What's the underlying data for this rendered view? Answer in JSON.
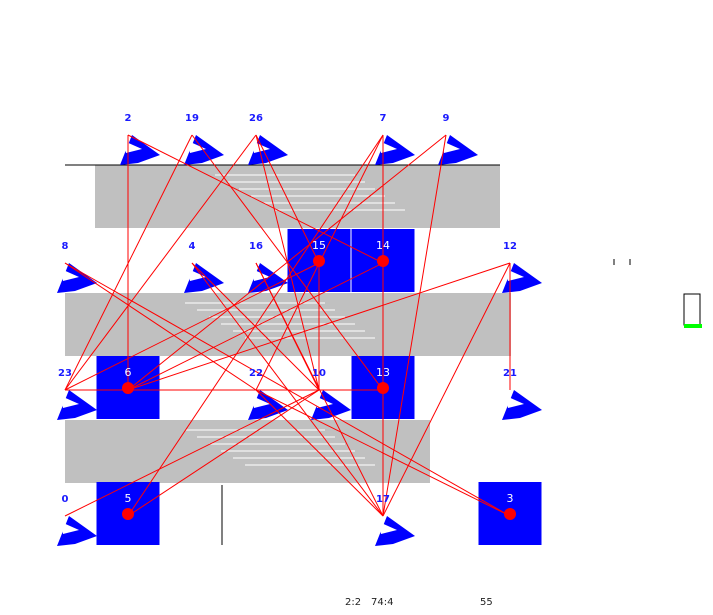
{
  "colors": {
    "band": "#c0c0c0",
    "node_fill": "#0000ff",
    "edge": "#ff0000",
    "dot": "#ff0000",
    "accent": "#00ff00"
  },
  "nodes": [
    {
      "id": "n2",
      "label": "2",
      "col": 1,
      "row": 0,
      "style": "glyph"
    },
    {
      "id": "n19",
      "label": "19",
      "col": 2,
      "row": 0,
      "style": "glyph"
    },
    {
      "id": "n26",
      "label": "26",
      "col": 3,
      "row": 0,
      "style": "glyph"
    },
    {
      "id": "n7",
      "label": "7",
      "col": 5,
      "row": 0,
      "style": "glyph"
    },
    {
      "id": "n9",
      "label": "9",
      "col": 6,
      "row": 0,
      "style": "glyph"
    },
    {
      "id": "n8",
      "label": "8",
      "col": 0,
      "row": 1,
      "style": "glyph"
    },
    {
      "id": "n4",
      "label": "4",
      "col": 2,
      "row": 1,
      "style": "glyph"
    },
    {
      "id": "n16",
      "label": "16",
      "col": 3,
      "row": 1,
      "style": "glyph"
    },
    {
      "id": "n15",
      "label": "15",
      "col": 4,
      "row": 1,
      "style": "box"
    },
    {
      "id": "n14",
      "label": "14",
      "col": 5,
      "row": 1,
      "style": "box"
    },
    {
      "id": "n12",
      "label": "12",
      "col": 7,
      "row": 1,
      "style": "glyph"
    },
    {
      "id": "n23",
      "label": "23",
      "col": 0,
      "row": 2,
      "style": "glyph"
    },
    {
      "id": "n6",
      "label": "6",
      "col": 1,
      "row": 2,
      "style": "box"
    },
    {
      "id": "n22",
      "label": "22",
      "col": 3,
      "row": 2,
      "style": "glyph"
    },
    {
      "id": "n10",
      "label": "10",
      "col": 4,
      "row": 2,
      "style": "glyph"
    },
    {
      "id": "n13",
      "label": "13",
      "col": 5,
      "row": 2,
      "style": "box"
    },
    {
      "id": "n21",
      "label": "21",
      "col": 7,
      "row": 2,
      "style": "glyph"
    },
    {
      "id": "n0",
      "label": "0",
      "col": 0,
      "row": 3,
      "style": "glyph"
    },
    {
      "id": "n5",
      "label": "5",
      "col": 1,
      "row": 3,
      "style": "box"
    },
    {
      "id": "n17",
      "label": "17",
      "col": 5,
      "row": 3,
      "style": "glyph"
    },
    {
      "id": "n3",
      "label": "3",
      "col": 7,
      "row": 3,
      "style": "box"
    }
  ],
  "edges": [
    [
      "n2",
      "n14"
    ],
    [
      "n2",
      "n6"
    ],
    [
      "n19",
      "n23"
    ],
    [
      "n19",
      "n13"
    ],
    [
      "n26",
      "n23"
    ],
    [
      "n26",
      "n10"
    ],
    [
      "n26",
      "n15"
    ],
    [
      "n7",
      "n17"
    ],
    [
      "n7",
      "n5"
    ],
    [
      "n7",
      "n22"
    ],
    [
      "n9",
      "n17"
    ],
    [
      "n9",
      "n6"
    ],
    [
      "n8",
      "n22"
    ],
    [
      "n8",
      "n3"
    ],
    [
      "n4",
      "n17"
    ],
    [
      "n16",
      "n10"
    ],
    [
      "n15",
      "n23"
    ],
    [
      "n15",
      "n10"
    ],
    [
      "n14",
      "n6"
    ],
    [
      "n14",
      "n17"
    ],
    [
      "n12",
      "n6"
    ],
    [
      "n12",
      "n17"
    ],
    [
      "n12",
      "n21"
    ],
    [
      "n23",
      "n13"
    ],
    [
      "n6",
      "n10"
    ],
    [
      "n22",
      "n17"
    ],
    [
      "n10",
      "n0"
    ],
    [
      "n10",
      "n5"
    ],
    [
      "n13",
      "n17"
    ],
    [
      "n3",
      "n22"
    ],
    [
      "n16",
      "n17"
    ],
    [
      "n4",
      "n10"
    ]
  ],
  "footer": {
    "left": "2:2",
    "mid": "74:4",
    "right": "55"
  }
}
